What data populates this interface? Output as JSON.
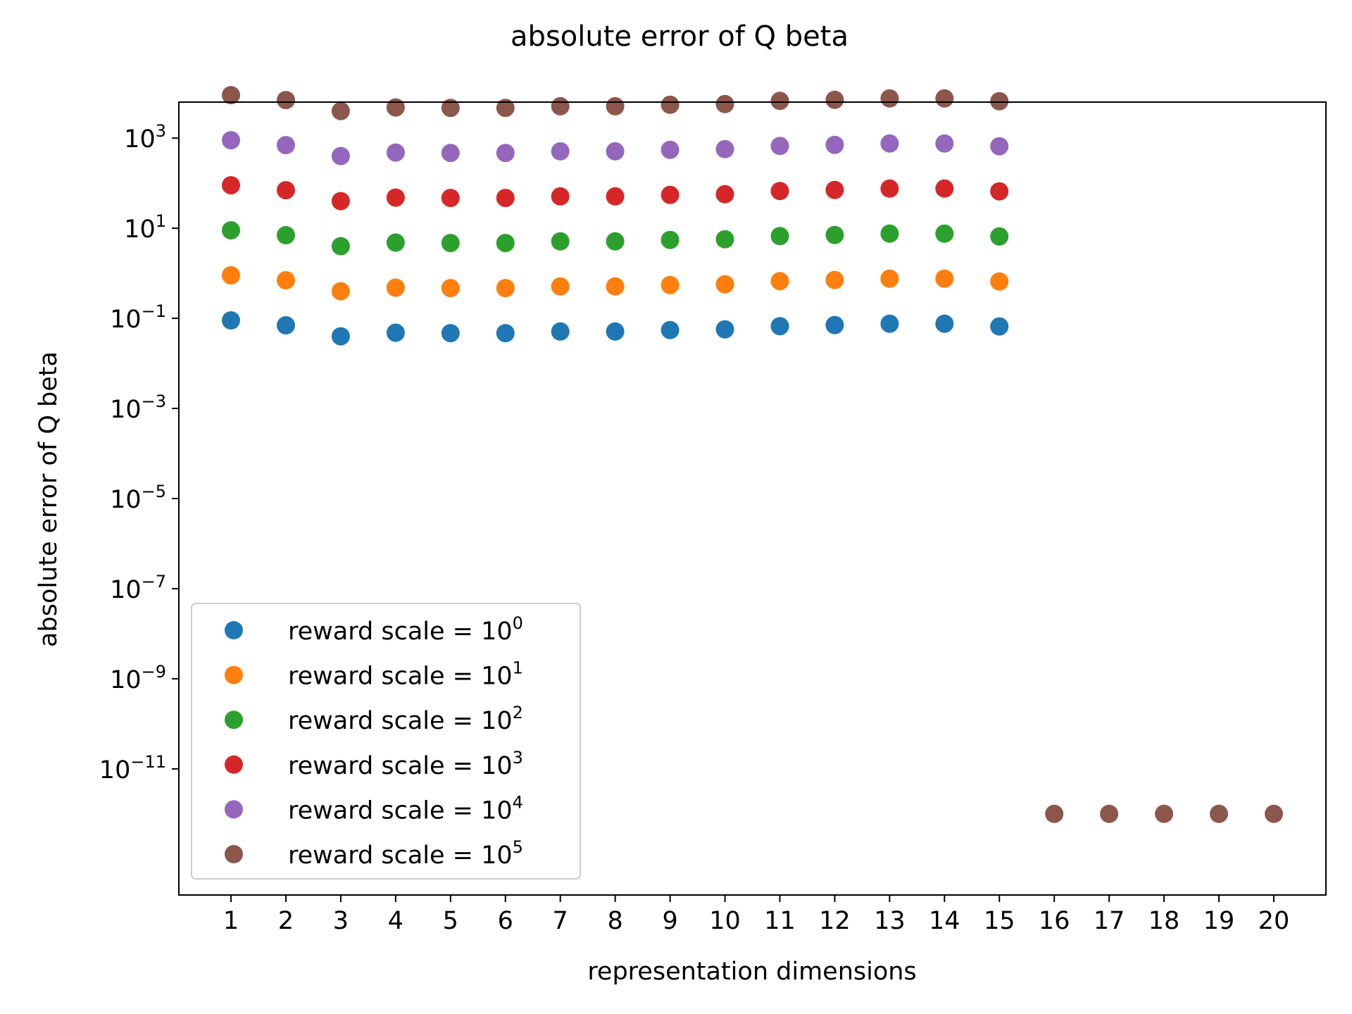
{
  "chart_data": {
    "type": "scatter",
    "title": "absolute error of Q beta",
    "xlabel": "representation dimensions",
    "ylabel": "absolute error of Q beta",
    "yscale": "log",
    "xlim": [
      0.05,
      20.95
    ],
    "ylim_log10": [
      -13.8,
      3.8
    ],
    "x_ticks": [
      1,
      2,
      3,
      4,
      5,
      6,
      7,
      8,
      9,
      10,
      11,
      12,
      13,
      14,
      15,
      16,
      17,
      18,
      19,
      20
    ],
    "y_ticks": [
      {
        "base": "10",
        "exp": "3",
        "log10": 3
      },
      {
        "base": "10",
        "exp": "1",
        "log10": 1
      },
      {
        "base": "10",
        "exp": "−1",
        "log10": -1
      },
      {
        "base": "10",
        "exp": "−3",
        "log10": -3
      },
      {
        "base": "10",
        "exp": "−5",
        "log10": -5
      },
      {
        "base": "10",
        "exp": "−7",
        "log10": -7
      },
      {
        "base": "10",
        "exp": "−9",
        "log10": -9
      },
      {
        "base": "10",
        "exp": "−11",
        "log10": -11
      }
    ],
    "grid": false,
    "legend_position": "lower-left",
    "series": [
      {
        "name_prefix": "reward scale = 10",
        "name_exp": "0",
        "color": "#1f77b4",
        "x": [
          1,
          2,
          3,
          4,
          5,
          6,
          7,
          8,
          9,
          10,
          11,
          12,
          13,
          14,
          15
        ],
        "y": [
          0.09,
          0.07,
          0.04,
          0.048,
          0.047,
          0.047,
          0.051,
          0.051,
          0.055,
          0.057,
          0.067,
          0.071,
          0.076,
          0.076,
          0.066
        ]
      },
      {
        "name_prefix": "reward scale = 10",
        "name_exp": "1",
        "color": "#ff7f0e",
        "x": [
          1,
          2,
          3,
          4,
          5,
          6,
          7,
          8,
          9,
          10,
          11,
          12,
          13,
          14,
          15
        ],
        "y": [
          0.9,
          0.7,
          0.4,
          0.48,
          0.47,
          0.47,
          0.51,
          0.51,
          0.55,
          0.57,
          0.67,
          0.71,
          0.76,
          0.76,
          0.66
        ]
      },
      {
        "name_prefix": "reward scale = 10",
        "name_exp": "2",
        "color": "#2ca02c",
        "x": [
          1,
          2,
          3,
          4,
          5,
          6,
          7,
          8,
          9,
          10,
          11,
          12,
          13,
          14,
          15
        ],
        "y": [
          9,
          7,
          4,
          4.8,
          4.7,
          4.7,
          5.1,
          5.1,
          5.5,
          5.7,
          6.7,
          7.1,
          7.6,
          7.6,
          6.6
        ]
      },
      {
        "name_prefix": "reward scale = 10",
        "name_exp": "3",
        "color": "#d62728",
        "x": [
          1,
          2,
          3,
          4,
          5,
          6,
          7,
          8,
          9,
          10,
          11,
          12,
          13,
          14,
          15
        ],
        "y": [
          90,
          70,
          40,
          48,
          47,
          47,
          51,
          51,
          55,
          57,
          67,
          71,
          76,
          76,
          66
        ]
      },
      {
        "name_prefix": "reward scale = 10",
        "name_exp": "4",
        "color": "#9467bd",
        "x": [
          1,
          2,
          3,
          4,
          5,
          6,
          7,
          8,
          9,
          10,
          11,
          12,
          13,
          14,
          15
        ],
        "y": [
          900,
          700,
          400,
          480,
          470,
          470,
          510,
          510,
          550,
          570,
          670,
          710,
          760,
          760,
          660
        ]
      },
      {
        "name_prefix": "reward scale = 10",
        "name_exp": "5",
        "color": "#8c564b",
        "x": [
          1,
          2,
          3,
          4,
          5,
          6,
          7,
          8,
          9,
          10,
          11,
          12,
          13,
          14,
          15,
          16,
          17,
          18,
          19,
          20
        ],
        "y": [
          9000,
          7000,
          4000,
          4800,
          4700,
          4700,
          5100,
          5100,
          5500,
          5700,
          6700,
          7100,
          7600,
          7600,
          6600,
          1e-12,
          1e-12,
          1e-12,
          1e-12,
          1e-12
        ]
      }
    ]
  }
}
